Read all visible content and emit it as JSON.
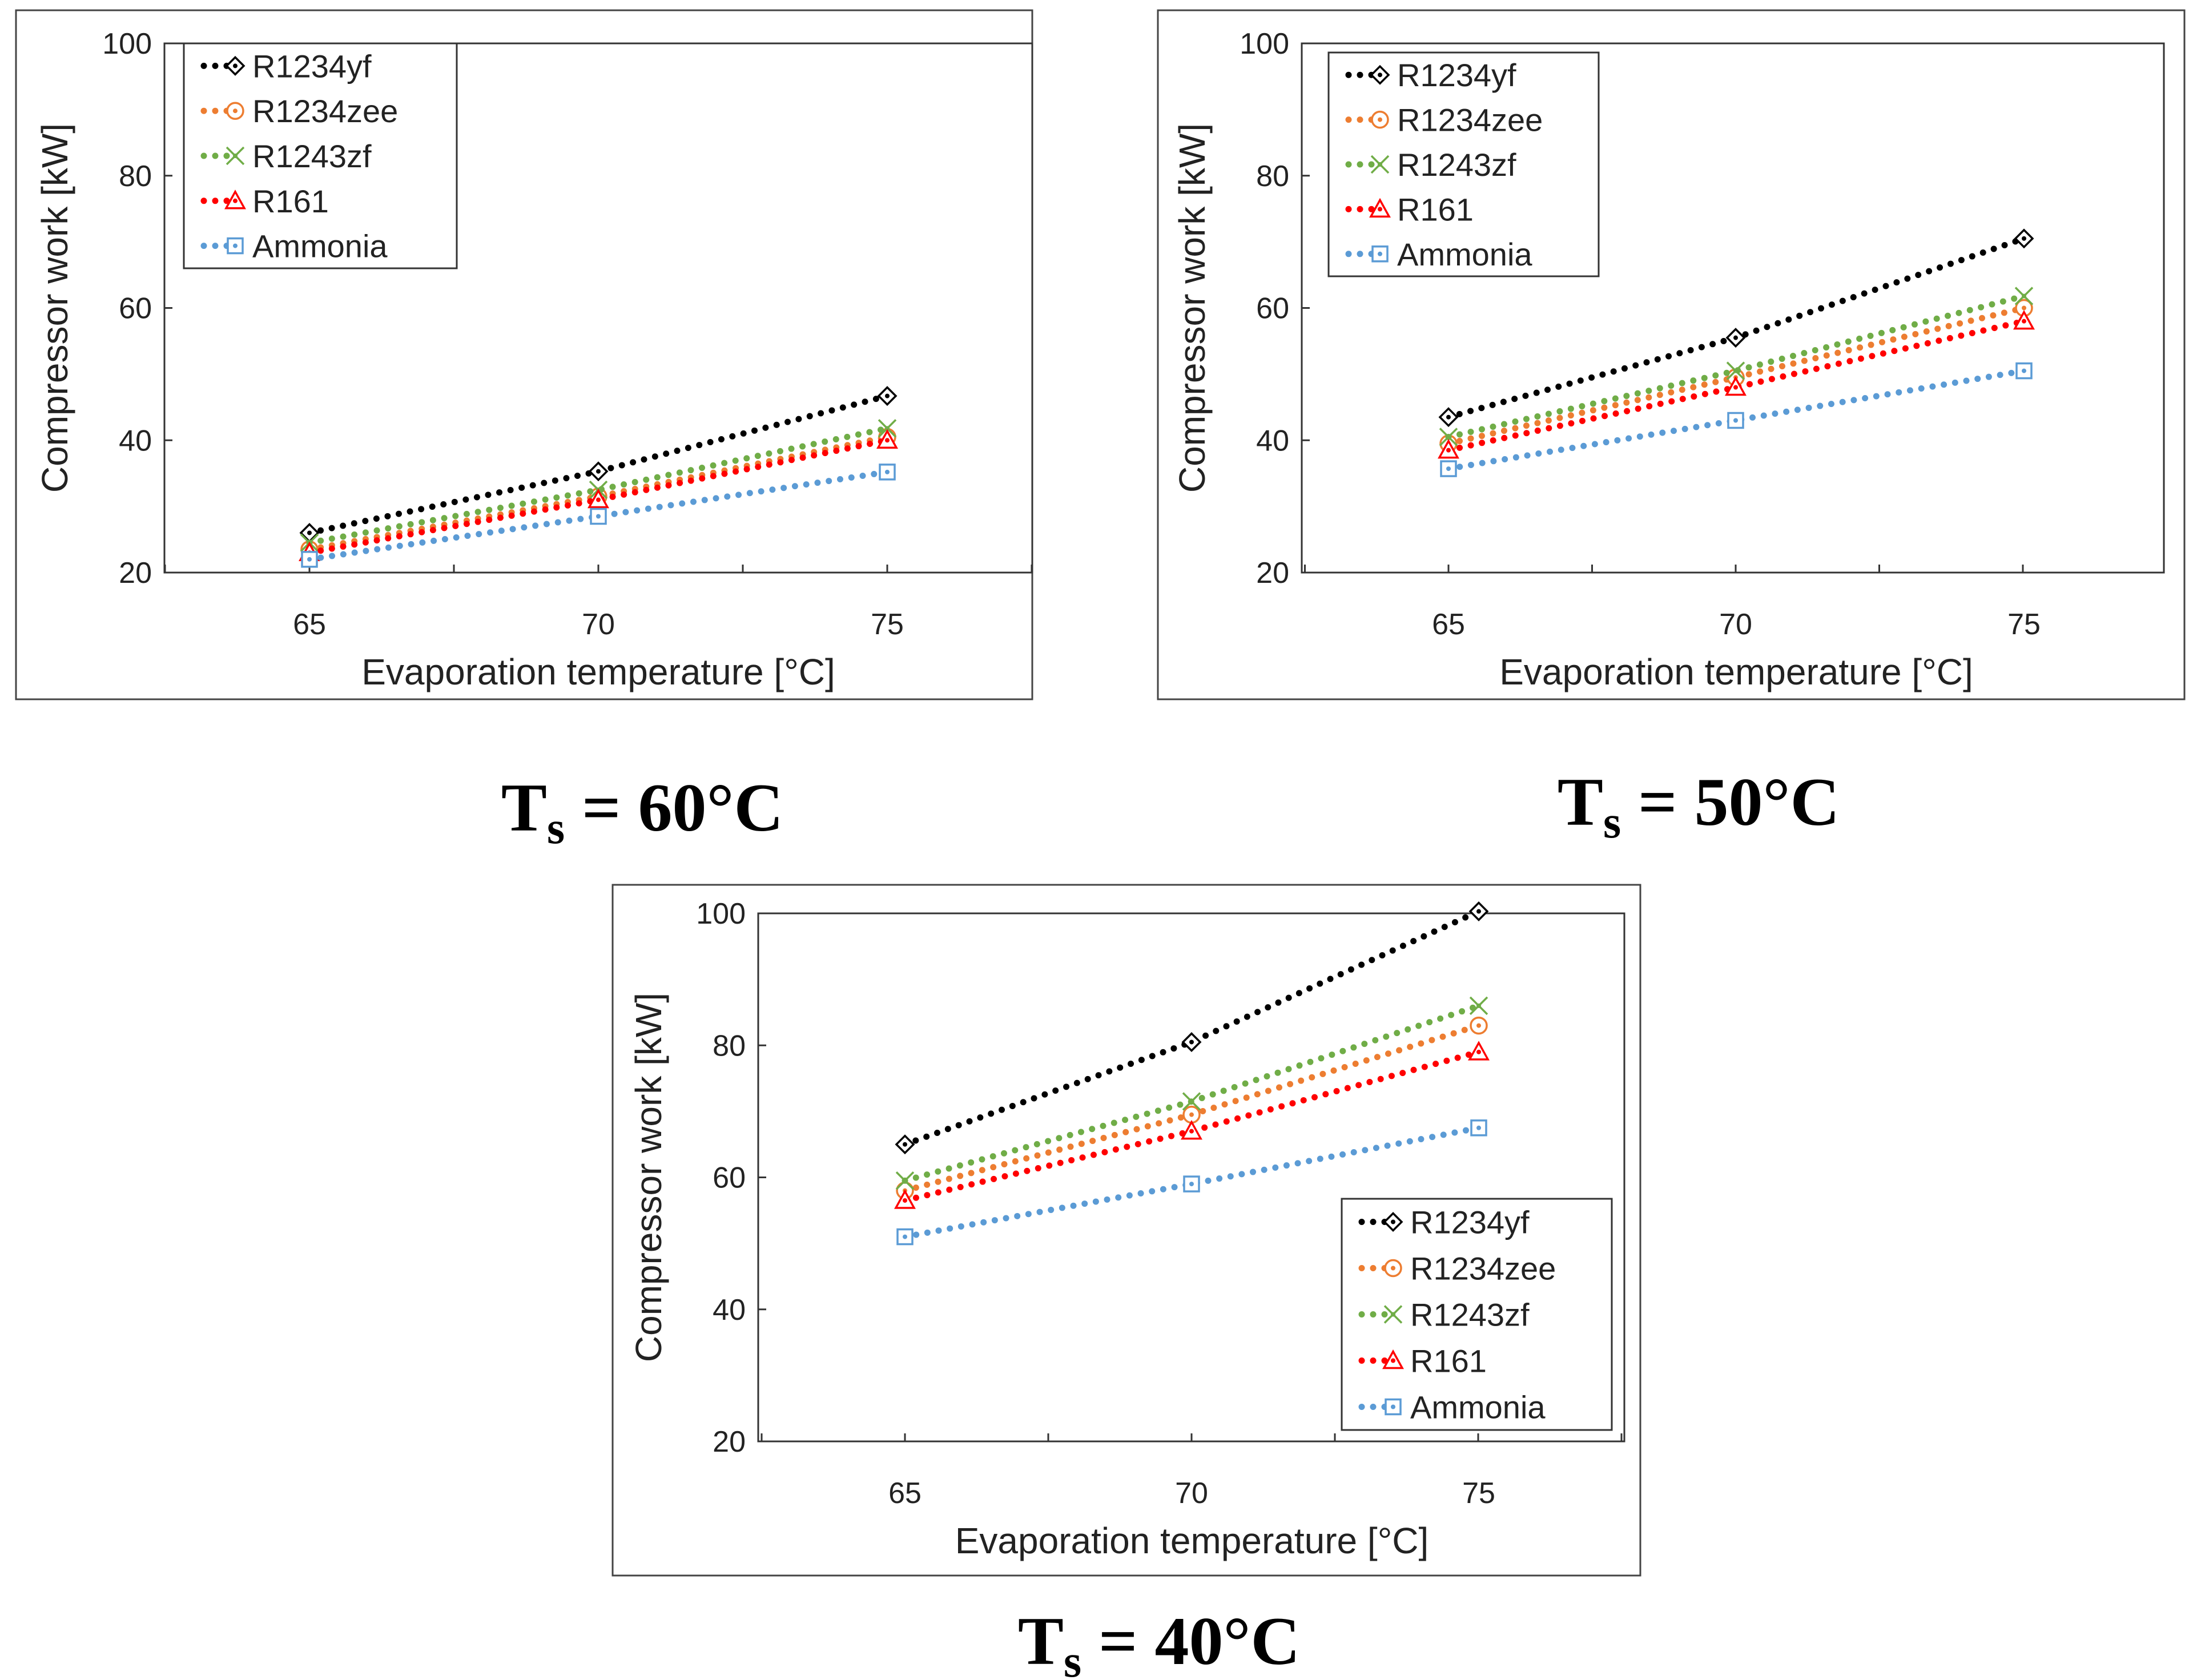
{
  "colors": {
    "R1234yf": "#000000",
    "R1234zee": "#ED7D31",
    "R1243zf": "#70AD47",
    "R161": "#FF0000",
    "Ammonia": "#5B9BD5"
  },
  "chart_data": [
    {
      "type": "scatter",
      "caption": {
        "main": "T",
        "sub": "s",
        "rest": " = 60°C"
      },
      "xlabel": "Evaporation temperature [°C]",
      "ylabel": "Compressor work [kW]",
      "xlim": [
        62.5,
        80
      ],
      "ylim": [
        20,
        100
      ],
      "xticks": [
        "65",
        "70",
        "75"
      ],
      "yticks": [
        "20",
        "40",
        "60",
        "80",
        "100"
      ],
      "legend": "top-left",
      "x": [
        65,
        70,
        75
      ],
      "series": [
        {
          "name": "R1234yf",
          "marker": "diamond",
          "values": [
            26,
            35.3,
            46.7
          ]
        },
        {
          "name": "R1234zee",
          "marker": "circle",
          "values": [
            23.5,
            31.5,
            40.5
          ]
        },
        {
          "name": "R1243zf",
          "marker": "x",
          "values": [
            24.5,
            32.5,
            41.8
          ]
        },
        {
          "name": "R161",
          "marker": "triangle",
          "values": [
            23,
            31,
            40
          ]
        },
        {
          "name": "Ammonia",
          "marker": "square",
          "values": [
            22,
            28.5,
            35.2
          ]
        }
      ]
    },
    {
      "type": "scatter",
      "caption": {
        "main": "T",
        "sub": "s",
        "rest": " = 50°C"
      },
      "xlabel": "Evaporation temperature [°C]",
      "ylabel": "Compressor work [kW]",
      "xlim": [
        62.5,
        80
      ],
      "ylim": [
        20,
        100
      ],
      "xticks": [
        "65",
        "70",
        "75"
      ],
      "yticks": [
        "20",
        "40",
        "60",
        "80",
        "100"
      ],
      "legend": "top-left",
      "x": [
        65,
        70,
        75
      ],
      "series": [
        {
          "name": "R1234yf",
          "marker": "diamond",
          "values": [
            43.5,
            55.5,
            70.5
          ]
        },
        {
          "name": "R1234zee",
          "marker": "circle",
          "values": [
            39.5,
            49.5,
            60
          ]
        },
        {
          "name": "R1243zf",
          "marker": "x",
          "values": [
            40.5,
            50.5,
            61.8
          ]
        },
        {
          "name": "R161",
          "marker": "triangle",
          "values": [
            38.5,
            48,
            58
          ]
        },
        {
          "name": "Ammonia",
          "marker": "square",
          "values": [
            35.7,
            43,
            50.5
          ]
        }
      ]
    },
    {
      "type": "scatter",
      "caption": {
        "main": "T",
        "sub": "s",
        "rest": " = 40°C"
      },
      "xlabel": "Evaporation temperature [°C]",
      "ylabel": "Compressor work [kW]",
      "xlim": [
        62.5,
        80
      ],
      "ylim": [
        20,
        100
      ],
      "xticks": [
        "65",
        "70",
        "75"
      ],
      "yticks": [
        "20",
        "40",
        "60",
        "80",
        "100"
      ],
      "legend": "bottom-right",
      "x": [
        65,
        70,
        75
      ],
      "series": [
        {
          "name": "R1234yf",
          "marker": "diamond",
          "values": [
            65,
            80.5,
            100.3
          ]
        },
        {
          "name": "R1234zee",
          "marker": "circle",
          "values": [
            58,
            69.5,
            83
          ]
        },
        {
          "name": "R1243zf",
          "marker": "x",
          "values": [
            59.5,
            71.5,
            86
          ]
        },
        {
          "name": "R161",
          "marker": "triangle",
          "values": [
            56.5,
            67,
            79
          ]
        },
        {
          "name": "Ammonia",
          "marker": "square",
          "values": [
            51,
            59,
            67.5
          ]
        }
      ]
    }
  ]
}
